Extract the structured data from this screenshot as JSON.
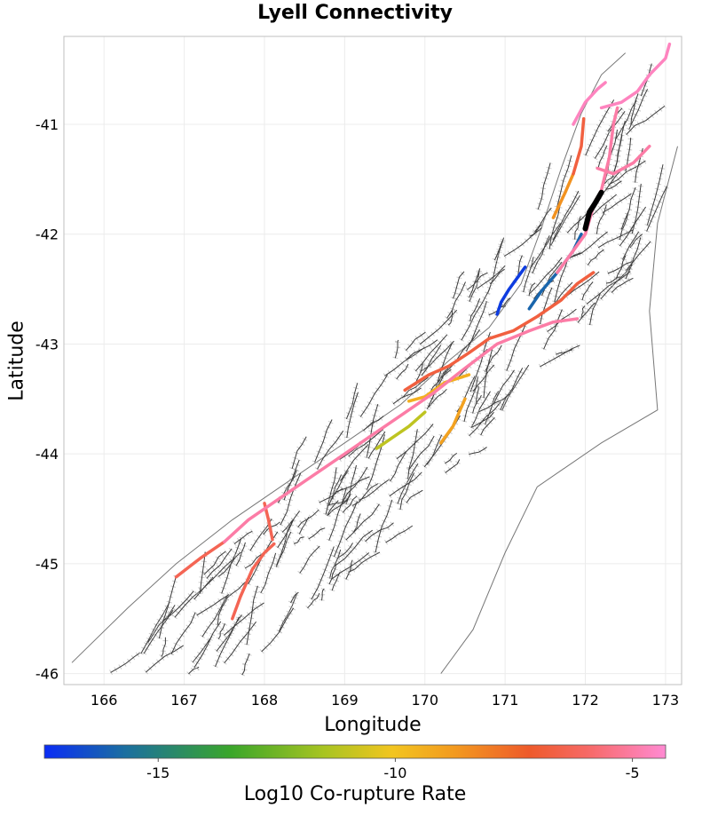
{
  "title": "Lyell Connectivity",
  "x_label": "Longitude",
  "y_label": "Latitude",
  "colorbar_label": "Log10 Co-rupture Rate",
  "x_ticks": [
    "166",
    "167",
    "168",
    "169",
    "170",
    "171",
    "172",
    "173"
  ],
  "y_ticks": [
    "-41",
    "-42",
    "-43",
    "-44",
    "-45",
    "-46"
  ],
  "colorbar_ticks": [
    "-15",
    "-10",
    "-5"
  ],
  "colors": {
    "background_fault": "#3a3a3a",
    "fault_surface": "#b4b4b4",
    "coast": "#777777",
    "source_fault": "#000000",
    "colorscale": [
      "#0a2cf5",
      "#1b6fa0",
      "#3aa62a",
      "#a8c421",
      "#f2c520",
      "#f39a1f",
      "#ee5a2a",
      "#f76a6a",
      "#ff8ad2"
    ]
  },
  "chart_data": {
    "type": "map",
    "title": "Lyell Connectivity",
    "xlabel": "Longitude",
    "ylabel": "Latitude",
    "xlim": [
      165.5,
      173.2
    ],
    "ylim": [
      -46.1,
      -40.2
    ],
    "colorbar": {
      "label": "Log10 Co-rupture Rate",
      "range": [
        -17.4,
        -4.3
      ],
      "ticks": [
        -15,
        -10,
        -5
      ]
    },
    "source_fault": {
      "name": "Lyell",
      "color": "#000000",
      "path": [
        [
          172.0,
          -41.95
        ],
        [
          172.05,
          -41.8
        ],
        [
          172.12,
          -41.72
        ],
        [
          172.2,
          -41.62
        ]
      ]
    },
    "ruptures": [
      {
        "rate": -17,
        "path": [
          [
            170.9,
            -42.73
          ],
          [
            170.95,
            -42.62
          ],
          [
            171.05,
            -42.5
          ],
          [
            171.15,
            -42.4
          ],
          [
            171.25,
            -42.3
          ]
        ]
      },
      {
        "rate": -16,
        "path": [
          [
            171.3,
            -42.68
          ],
          [
            171.45,
            -42.52
          ],
          [
            171.65,
            -42.35
          ],
          [
            171.85,
            -42.15
          ],
          [
            171.95,
            -42.0
          ]
        ]
      },
      {
        "rate": -12,
        "path": [
          [
            169.4,
            -43.95
          ],
          [
            169.6,
            -43.85
          ],
          [
            169.8,
            -43.75
          ],
          [
            170.0,
            -43.62
          ]
        ]
      },
      {
        "rate": -10,
        "path": [
          [
            169.8,
            -43.52
          ],
          [
            170.0,
            -43.48
          ],
          [
            170.25,
            -43.35
          ],
          [
            170.55,
            -43.28
          ]
        ]
      },
      {
        "rate": -9.5,
        "path": [
          [
            170.2,
            -43.9
          ],
          [
            170.35,
            -43.75
          ],
          [
            170.5,
            -43.5
          ]
        ]
      },
      {
        "rate": -9,
        "path": [
          [
            171.6,
            -41.85
          ],
          [
            171.75,
            -41.62
          ],
          [
            171.85,
            -41.45
          ]
        ]
      },
      {
        "rate": -7,
        "path": [
          [
            169.75,
            -43.42
          ],
          [
            170.05,
            -43.28
          ],
          [
            170.3,
            -43.2
          ],
          [
            170.55,
            -43.08
          ],
          [
            170.8,
            -42.95
          ],
          [
            171.1,
            -42.88
          ],
          [
            171.4,
            -42.75
          ],
          [
            171.7,
            -42.6
          ],
          [
            171.9,
            -42.45
          ],
          [
            172.1,
            -42.35
          ]
        ]
      },
      {
        "rate": -7,
        "path": [
          [
            171.85,
            -41.45
          ],
          [
            171.95,
            -41.2
          ],
          [
            171.98,
            -40.95
          ]
        ]
      },
      {
        "rate": -6.5,
        "path": [
          [
            168.0,
            -44.45
          ],
          [
            168.05,
            -44.6
          ],
          [
            168.1,
            -44.78
          ]
        ]
      },
      {
        "rate": -6.5,
        "path": [
          [
            167.6,
            -45.5
          ],
          [
            167.7,
            -45.3
          ],
          [
            167.85,
            -45.05
          ],
          [
            168.0,
            -44.9
          ],
          [
            168.12,
            -44.82
          ]
        ]
      },
      {
        "rate": -6.5,
        "path": [
          [
            166.9,
            -45.12
          ],
          [
            167.2,
            -44.95
          ],
          [
            167.5,
            -44.8
          ]
        ]
      },
      {
        "rate": -5,
        "path": [
          [
            167.5,
            -44.8
          ],
          [
            167.8,
            -44.6
          ],
          [
            168.1,
            -44.45
          ],
          [
            168.5,
            -44.25
          ],
          [
            168.9,
            -44.05
          ],
          [
            169.3,
            -43.85
          ],
          [
            169.7,
            -43.65
          ],
          [
            170.1,
            -43.45
          ],
          [
            170.5,
            -43.22
          ],
          [
            170.9,
            -43.0
          ],
          [
            171.3,
            -42.88
          ],
          [
            171.6,
            -42.8
          ],
          [
            171.9,
            -42.77
          ]
        ]
      },
      {
        "rate": -5,
        "path": [
          [
            171.65,
            -42.35
          ],
          [
            171.85,
            -42.15
          ],
          [
            172.0,
            -42.0
          ],
          [
            172.1,
            -41.75
          ],
          [
            172.2,
            -41.6
          ],
          [
            172.3,
            -41.3
          ],
          [
            172.35,
            -41.0
          ],
          [
            172.4,
            -40.85
          ]
        ]
      },
      {
        "rate": -5,
        "path": [
          [
            172.15,
            -41.4
          ],
          [
            172.35,
            -41.45
          ],
          [
            172.6,
            -41.35
          ],
          [
            172.8,
            -41.2
          ]
        ]
      },
      {
        "rate": -4.6,
        "path": [
          [
            172.2,
            -40.85
          ],
          [
            172.45,
            -40.8
          ],
          [
            172.65,
            -40.7
          ],
          [
            172.8,
            -40.55
          ],
          [
            173.0,
            -40.4
          ],
          [
            173.05,
            -40.27
          ]
        ]
      },
      {
        "rate": -4.6,
        "path": [
          [
            171.85,
            -41.0
          ],
          [
            172.0,
            -40.8
          ],
          [
            172.15,
            -40.68
          ],
          [
            172.25,
            -40.62
          ]
        ]
      }
    ]
  }
}
